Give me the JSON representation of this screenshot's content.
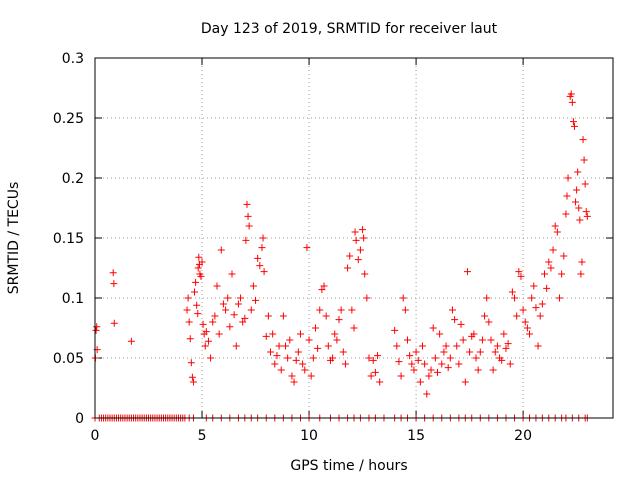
{
  "chart_data": {
    "type": "scatter",
    "title": "Day 123 of 2019, SRMTID for receiver laut",
    "xlabel": "GPS time / hours",
    "ylabel": "SRMTID / TECUs",
    "xlim": [
      0,
      24.2
    ],
    "ylim": [
      0,
      0.3
    ],
    "xticks": [
      0,
      5,
      10,
      15,
      20
    ],
    "xtick_labels": [
      "0",
      "5",
      "10",
      "15",
      "20"
    ],
    "yticks": [
      0,
      0.05,
      0.1,
      0.15,
      0.2,
      0.25,
      0.3
    ],
    "ytick_labels": [
      "0",
      "0.05",
      "0.1",
      "0.15",
      "0.2",
      "0.25",
      "0.3"
    ],
    "grid": true,
    "marker": "+",
    "marker_color": "#ff0000",
    "series": [
      {
        "name": "SRMTID",
        "points": [
          [
            0.02,
            0.05
          ],
          [
            0.05,
            0.073
          ],
          [
            0.08,
            0.076
          ],
          [
            0.1,
            0.057
          ],
          [
            0.85,
            0.121
          ],
          [
            0.88,
            0.112
          ],
          [
            0.9,
            0.079
          ],
          [
            1.7,
            0.064
          ],
          [
            4.3,
            0.09
          ],
          [
            4.35,
            0.1
          ],
          [
            4.4,
            0.08
          ],
          [
            4.45,
            0.066
          ],
          [
            4.5,
            0.046
          ],
          [
            4.55,
            0.034
          ],
          [
            4.6,
            0.03
          ],
          [
            4.65,
            0.105
          ],
          [
            4.7,
            0.113
          ],
          [
            4.75,
            0.094
          ],
          [
            4.8,
            0.087
          ],
          [
            4.82,
            0.125
          ],
          [
            4.85,
            0.134
          ],
          [
            4.88,
            0.128
          ],
          [
            4.9,
            0.12
          ],
          [
            4.95,
            0.118
          ],
          [
            5.0,
            0.13
          ],
          [
            5.05,
            0.078
          ],
          [
            5.1,
            0.07
          ],
          [
            5.15,
            0.06
          ],
          [
            5.2,
            0.072
          ],
          [
            5.3,
            0.064
          ],
          [
            5.4,
            0.05
          ],
          [
            5.5,
            0.08
          ],
          [
            5.6,
            0.085
          ],
          [
            5.7,
            0.11
          ],
          [
            5.8,
            0.07
          ],
          [
            5.9,
            0.14
          ],
          [
            6.0,
            0.095
          ],
          [
            6.1,
            0.09
          ],
          [
            6.2,
            0.1
          ],
          [
            6.3,
            0.076
          ],
          [
            6.4,
            0.12
          ],
          [
            6.5,
            0.086
          ],
          [
            6.6,
            0.06
          ],
          [
            6.7,
            0.095
          ],
          [
            6.8,
            0.1
          ],
          [
            6.9,
            0.08
          ],
          [
            7.0,
            0.083
          ],
          [
            7.05,
            0.148
          ],
          [
            7.1,
            0.178
          ],
          [
            7.15,
            0.168
          ],
          [
            7.2,
            0.16
          ],
          [
            7.3,
            0.09
          ],
          [
            7.4,
            0.11
          ],
          [
            7.5,
            0.098
          ],
          [
            7.6,
            0.133
          ],
          [
            7.7,
            0.127
          ],
          [
            7.8,
            0.142
          ],
          [
            7.85,
            0.15
          ],
          [
            7.9,
            0.122
          ],
          [
            8.0,
            0.068
          ],
          [
            8.1,
            0.085
          ],
          [
            8.2,
            0.055
          ],
          [
            8.3,
            0.07
          ],
          [
            8.4,
            0.045
          ],
          [
            8.5,
            0.052
          ],
          [
            8.6,
            0.06
          ],
          [
            8.7,
            0.04
          ],
          [
            8.8,
            0.085
          ],
          [
            8.9,
            0.06
          ],
          [
            9.0,
            0.05
          ],
          [
            9.1,
            0.065
          ],
          [
            9.2,
            0.035
          ],
          [
            9.3,
            0.03
          ],
          [
            9.4,
            0.048
          ],
          [
            9.5,
            0.055
          ],
          [
            9.6,
            0.07
          ],
          [
            9.7,
            0.045
          ],
          [
            9.8,
            0.04
          ],
          [
            9.9,
            0.142
          ],
          [
            10.0,
            0.065
          ],
          [
            10.1,
            0.035
          ],
          [
            10.2,
            0.05
          ],
          [
            10.3,
            0.075
          ],
          [
            10.4,
            0.058
          ],
          [
            10.5,
            0.09
          ],
          [
            10.6,
            0.107
          ],
          [
            10.7,
            0.11
          ],
          [
            10.8,
            0.085
          ],
          [
            10.9,
            0.06
          ],
          [
            11.0,
            0.048
          ],
          [
            11.1,
            0.05
          ],
          [
            11.2,
            0.07
          ],
          [
            11.3,
            0.065
          ],
          [
            11.4,
            0.082
          ],
          [
            11.5,
            0.09
          ],
          [
            11.6,
            0.055
          ],
          [
            11.7,
            0.045
          ],
          [
            11.8,
            0.125
          ],
          [
            11.9,
            0.135
          ],
          [
            12.0,
            0.09
          ],
          [
            12.1,
            0.075
          ],
          [
            12.15,
            0.155
          ],
          [
            12.2,
            0.148
          ],
          [
            12.3,
            0.132
          ],
          [
            12.4,
            0.14
          ],
          [
            12.5,
            0.157
          ],
          [
            12.55,
            0.15
          ],
          [
            12.6,
            0.12
          ],
          [
            12.7,
            0.1
          ],
          [
            12.8,
            0.05
          ],
          [
            12.9,
            0.035
          ],
          [
            13.0,
            0.048
          ],
          [
            13.1,
            0.038
          ],
          [
            13.2,
            0.052
          ],
          [
            13.3,
            0.03
          ],
          [
            14.0,
            0.073
          ],
          [
            14.1,
            0.06
          ],
          [
            14.2,
            0.047
          ],
          [
            14.3,
            0.035
          ],
          [
            14.4,
            0.1
          ],
          [
            14.5,
            0.09
          ],
          [
            14.6,
            0.065
          ],
          [
            14.7,
            0.052
          ],
          [
            14.8,
            0.045
          ],
          [
            14.9,
            0.04
          ],
          [
            15.0,
            0.055
          ],
          [
            15.1,
            0.048
          ],
          [
            15.2,
            0.03
          ],
          [
            15.3,
            0.06
          ],
          [
            15.4,
            0.045
          ],
          [
            15.5,
            0.02
          ],
          [
            15.6,
            0.035
          ],
          [
            15.7,
            0.04
          ],
          [
            15.8,
            0.075
          ],
          [
            15.9,
            0.05
          ],
          [
            16.0,
            0.038
          ],
          [
            16.1,
            0.07
          ],
          [
            16.2,
            0.045
          ],
          [
            16.3,
            0.055
          ],
          [
            16.4,
            0.06
          ],
          [
            16.5,
            0.042
          ],
          [
            16.6,
            0.05
          ],
          [
            16.7,
            0.09
          ],
          [
            16.8,
            0.082
          ],
          [
            16.9,
            0.06
          ],
          [
            17.0,
            0.045
          ],
          [
            17.1,
            0.078
          ],
          [
            17.2,
            0.065
          ],
          [
            17.3,
            0.03
          ],
          [
            17.4,
            0.122
          ],
          [
            17.5,
            0.055
          ],
          [
            17.6,
            0.068
          ],
          [
            17.7,
            0.07
          ],
          [
            17.8,
            0.05
          ],
          [
            17.9,
            0.04
          ],
          [
            18.0,
            0.055
          ],
          [
            18.1,
            0.065
          ],
          [
            18.2,
            0.085
          ],
          [
            18.3,
            0.1
          ],
          [
            18.4,
            0.08
          ],
          [
            18.5,
            0.065
          ],
          [
            18.6,
            0.04
          ],
          [
            18.7,
            0.055
          ],
          [
            18.8,
            0.06
          ],
          [
            18.9,
            0.05
          ],
          [
            19.0,
            0.048
          ],
          [
            19.1,
            0.07
          ],
          [
            19.2,
            0.058
          ],
          [
            19.3,
            0.062
          ],
          [
            19.4,
            0.045
          ],
          [
            19.5,
            0.105
          ],
          [
            19.6,
            0.1
          ],
          [
            19.7,
            0.085
          ],
          [
            19.8,
            0.122
          ],
          [
            19.9,
            0.118
          ],
          [
            20.0,
            0.09
          ],
          [
            20.1,
            0.08
          ],
          [
            20.2,
            0.075
          ],
          [
            20.3,
            0.07
          ],
          [
            20.4,
            0.1
          ],
          [
            20.5,
            0.11
          ],
          [
            20.6,
            0.092
          ],
          [
            20.7,
            0.06
          ],
          [
            20.8,
            0.085
          ],
          [
            20.9,
            0.095
          ],
          [
            21.0,
            0.12
          ],
          [
            21.1,
            0.108
          ],
          [
            21.2,
            0.13
          ],
          [
            21.3,
            0.125
          ],
          [
            21.4,
            0.14
          ],
          [
            21.5,
            0.16
          ],
          [
            21.6,
            0.155
          ],
          [
            21.7,
            0.1
          ],
          [
            21.8,
            0.12
          ],
          [
            21.9,
            0.135
          ],
          [
            22.0,
            0.17
          ],
          [
            22.05,
            0.185
          ],
          [
            22.1,
            0.2
          ],
          [
            22.2,
            0.268
          ],
          [
            22.25,
            0.27
          ],
          [
            22.3,
            0.263
          ],
          [
            22.35,
            0.247
          ],
          [
            22.4,
            0.243
          ],
          [
            22.45,
            0.18
          ],
          [
            22.5,
            0.19
          ],
          [
            22.55,
            0.205
          ],
          [
            22.6,
            0.175
          ],
          [
            22.65,
            0.165
          ],
          [
            22.7,
            0.12
          ],
          [
            22.75,
            0.13
          ],
          [
            22.8,
            0.232
          ],
          [
            22.85,
            0.215
          ],
          [
            22.9,
            0.195
          ],
          [
            22.95,
            0.172
          ],
          [
            23.0,
            0.168
          ]
        ]
      }
    ],
    "zero_points_x": [
      0,
      0.2,
      0.3,
      0.4,
      0.5,
      0.6,
      0.7,
      0.8,
      0.9,
      1.0,
      1.1,
      1.2,
      1.3,
      1.4,
      1.5,
      1.6,
      1.7,
      1.8,
      1.9,
      2.0,
      2.1,
      2.2,
      2.3,
      2.4,
      2.5,
      2.6,
      2.7,
      2.8,
      2.9,
      3.0,
      3.1,
      3.2,
      3.3,
      3.4,
      3.5,
      3.6,
      3.7,
      3.8,
      3.9,
      4.0,
      4.1,
      4.2,
      4.4,
      4.6,
      5.2,
      5.5,
      5.9,
      6.3,
      6.7,
      7.0,
      7.3,
      7.6,
      8.0,
      8.4,
      8.8,
      9.2,
      9.6,
      10.0,
      10.5,
      11.0,
      11.4,
      11.8,
      12.1,
      12.4,
      12.8,
      13.1,
      13.5,
      14.0,
      14.3,
      14.6,
      15.0,
      15.4,
      15.8,
      16.2,
      16.6,
      17.0,
      17.3,
      17.6,
      18.0,
      18.4,
      18.8,
      19.2,
      19.6,
      20.0,
      20.3,
      20.6,
      20.9,
      21.2,
      21.5,
      21.8,
      22.0,
      22.3,
      22.6,
      22.9,
      23.0
    ]
  }
}
